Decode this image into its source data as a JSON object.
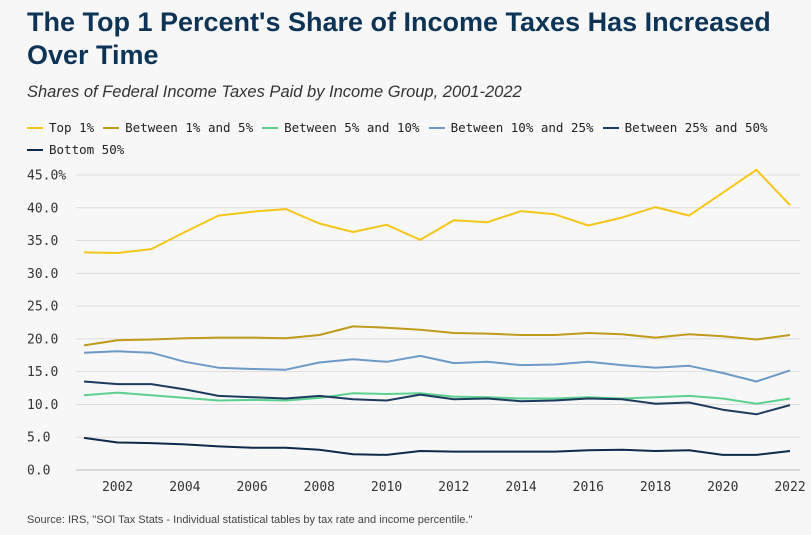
{
  "title": "The Top 1 Percent's Share of Income Taxes Has Increased Over Time",
  "subtitle": "Shares of Federal Income Taxes Paid by Income Group, 2001-2022",
  "source": "Source: IRS, \"SOI Tax Stats - Individual statistical tables by tax rate and income percentile.\"",
  "chart_data": {
    "type": "line",
    "title": "The Top 1 Percent's Share of Income Taxes Has Increased Over Time",
    "subtitle": "Shares of Federal Income Taxes Paid by Income Group, 2001-2022",
    "xlabel": "",
    "ylabel": "",
    "x": [
      2001,
      2002,
      2003,
      2004,
      2005,
      2006,
      2007,
      2008,
      2009,
      2010,
      2011,
      2012,
      2013,
      2014,
      2015,
      2016,
      2017,
      2018,
      2019,
      2020,
      2021,
      2022
    ],
    "x_ticks": [
      "2002",
      "2004",
      "2006",
      "2008",
      "2010",
      "2012",
      "2014",
      "2016",
      "2018",
      "2020",
      "2022"
    ],
    "y_ticks": [
      "0.0",
      "5.0",
      "10.0",
      "15.0",
      "20.0",
      "25.0",
      "30.0",
      "35.0",
      "40.0",
      "45.0%"
    ],
    "ylim": [
      0,
      45
    ],
    "grid": true,
    "legend_position": "top",
    "series": [
      {
        "name": "Top 1%",
        "color": "#f5c518",
        "values": [
          33.2,
          33.1,
          33.7,
          36.3,
          38.8,
          39.4,
          39.8,
          37.6,
          36.3,
          37.4,
          35.1,
          38.1,
          37.8,
          39.5,
          39.0,
          37.3,
          38.5,
          40.1,
          38.8,
          42.3,
          45.8,
          40.4
        ]
      },
      {
        "name": "Between 1% and 5%",
        "color": "#c09a1a",
        "values": [
          19.0,
          19.8,
          19.9,
          20.1,
          20.2,
          20.2,
          20.1,
          20.6,
          21.9,
          21.7,
          21.4,
          20.9,
          20.8,
          20.6,
          20.6,
          20.9,
          20.7,
          20.2,
          20.7,
          20.4,
          19.9,
          20.6
        ]
      },
      {
        "name": "Between 5% and 10%",
        "color": "#5cd08e",
        "values": [
          11.4,
          11.8,
          11.4,
          11.0,
          10.6,
          10.7,
          10.6,
          11.0,
          11.7,
          11.6,
          11.7,
          11.2,
          11.1,
          10.9,
          10.9,
          11.1,
          10.9,
          11.1,
          11.3,
          10.9,
          10.1,
          10.9
        ]
      },
      {
        "name": "Between 10% and 25%",
        "color": "#6c9ac8",
        "values": [
          17.9,
          18.1,
          17.9,
          16.5,
          15.6,
          15.4,
          15.3,
          16.4,
          16.9,
          16.5,
          17.4,
          16.3,
          16.5,
          16.0,
          16.1,
          16.5,
          16.0,
          15.6,
          15.9,
          14.8,
          13.5,
          15.2
        ]
      },
      {
        "name": "Between 25% and 50%",
        "color": "#1c3b5e",
        "values": [
          13.5,
          13.1,
          13.1,
          12.3,
          11.3,
          11.1,
          10.9,
          11.3,
          10.8,
          10.6,
          11.5,
          10.8,
          10.9,
          10.5,
          10.6,
          10.9,
          10.8,
          10.1,
          10.3,
          9.2,
          8.5,
          9.9
        ]
      },
      {
        "name": "Bottom 50%",
        "color": "#0d2a4a",
        "values": [
          4.9,
          4.2,
          4.1,
          3.9,
          3.6,
          3.4,
          3.4,
          3.1,
          2.4,
          2.3,
          2.9,
          2.8,
          2.8,
          2.8,
          2.8,
          3.0,
          3.1,
          2.9,
          3.0,
          2.3,
          2.3,
          2.9
        ]
      }
    ]
  },
  "colors": {
    "title": "#0d3457",
    "gridline": "#dcdcdc",
    "background": "#f7f7f7"
  }
}
